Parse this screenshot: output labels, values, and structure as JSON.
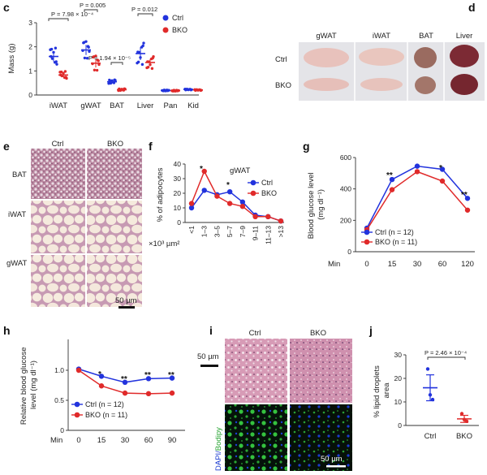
{
  "panels": {
    "c": "c",
    "d": "d",
    "e": "e",
    "f": "f",
    "g": "g",
    "h": "h",
    "i": "i",
    "j": "j"
  },
  "colors": {
    "ctrl": "#2233dd",
    "bko": "#e02a2a"
  },
  "chart_data": [
    {
      "panel": "c",
      "type": "scatter",
      "ylabel": "Mass (g)",
      "categories": [
        "iWAT",
        "gWAT",
        "BAT",
        "Liver",
        "Pan",
        "Kid"
      ],
      "ylim": [
        0,
        3
      ],
      "yticks": [
        "0",
        "1",
        "2",
        "3"
      ],
      "series": [
        {
          "name": "Ctrl",
          "means": [
            1.6,
            1.87,
            0.55,
            1.72,
            0.19,
            0.23
          ]
        },
        {
          "name": "BKO",
          "means": [
            0.83,
            1.32,
            0.22,
            1.35,
            0.18,
            0.21
          ]
        }
      ],
      "annotations": [
        {
          "text": "P = 7.98 × 10⁻⁴"
        },
        {
          "text": "P = 0.005"
        },
        {
          "text": "P = 1.94 × 10⁻⁵"
        },
        {
          "text": "P = 0.012"
        }
      ]
    },
    {
      "panel": "f",
      "type": "line",
      "title": "gWAT",
      "ylabel": "% of adipocytes",
      "xlabel": "×10³ µm²",
      "categories": [
        "<1",
        "1–3",
        "3–5",
        "5–7",
        "7–9",
        "9–11",
        "11–13",
        ">13"
      ],
      "ylim": [
        0,
        40
      ],
      "yticks": [
        "0",
        "10",
        "20",
        "30",
        "40"
      ],
      "series": [
        {
          "name": "Ctrl",
          "values": [
            10,
            22,
            19,
            21,
            14,
            5,
            4,
            1
          ]
        },
        {
          "name": "BKO",
          "values": [
            13,
            35,
            18,
            13,
            11,
            4,
            4,
            1
          ]
        }
      ],
      "significance": [
        {
          "text": "*"
        },
        {
          "text": "*"
        }
      ]
    },
    {
      "panel": "g",
      "type": "line",
      "ylabel": "Blood glucose level (mg dl⁻¹)",
      "xlabel": "Min",
      "x": [
        0,
        15,
        30,
        60,
        120
      ],
      "xticks": [
        "0",
        "15",
        "30",
        "60",
        "120"
      ],
      "ylim": [
        0,
        600
      ],
      "yticks": [
        "0",
        "200",
        "400",
        "600"
      ],
      "series": [
        {
          "name": "Ctrl (n = 12)",
          "values": [
            150,
            460,
            545,
            525,
            340
          ]
        },
        {
          "name": "BKO (n = 11)",
          "values": [
            140,
            395,
            510,
            450,
            265
          ]
        }
      ],
      "significance": [
        {
          "text": "**"
        },
        {
          "text": "*"
        },
        {
          "text": "**"
        }
      ]
    },
    {
      "panel": "h",
      "type": "line",
      "ylabel": "Relative blood glucose level (mg dl⁻¹)",
      "xlabel": "Min",
      "x": [
        0,
        15,
        30,
        60,
        90
      ],
      "xticks": [
        "0",
        "15",
        "30",
        "60",
        "90"
      ],
      "ylim": [
        0,
        1.0
      ],
      "yticks": [
        "0",
        "0.5",
        "1.0"
      ],
      "series": [
        {
          "name": "Ctrl (n = 12)",
          "values": [
            1.02,
            0.9,
            0.8,
            0.86,
            0.87
          ]
        },
        {
          "name": "BKO (n = 11)",
          "values": [
            1.0,
            0.74,
            0.62,
            0.61,
            0.62
          ]
        }
      ],
      "significance": [
        {
          "text": "*"
        },
        {
          "text": "**"
        },
        {
          "text": "**"
        },
        {
          "text": "**"
        }
      ]
    },
    {
      "panel": "j",
      "type": "scatter",
      "ylabel": "% lipid droplets area",
      "categories": [
        "Ctrl",
        "BKO"
      ],
      "ylim": [
        0,
        30
      ],
      "yticks": [
        "0",
        "10",
        "20",
        "30"
      ],
      "series": [
        {
          "name": "Ctrl",
          "mean": 16,
          "low": 10.5,
          "high": 21.5,
          "points": [
            24,
            13,
            11
          ]
        },
        {
          "name": "BKO",
          "mean": 2.8,
          "low": 1.3,
          "high": 4.3,
          "points": [
            5,
            2.5,
            1.8
          ]
        }
      ],
      "annotations": [
        {
          "text": "P = 2.46 × 10⁻⁴"
        }
      ]
    }
  ],
  "c_legend": [
    "Ctrl",
    "BKO"
  ],
  "d_photo": {
    "cols": [
      "gWAT",
      "iWAT",
      "BAT",
      "Liver"
    ],
    "rows": [
      "Ctrl",
      "BKO"
    ]
  },
  "e_photo": {
    "cols": [
      "Ctrl",
      "BKO"
    ],
    "rows": [
      "BAT",
      "iWAT",
      "gWAT"
    ],
    "scale": "50 µm"
  },
  "i_photo": {
    "cols": [
      "Ctrl",
      "BKO"
    ],
    "scale_top": "50 µm",
    "scale_bottom": "50 µm",
    "stain_dapi": "DAPI/",
    "stain_bodipy": "Bodipy"
  }
}
